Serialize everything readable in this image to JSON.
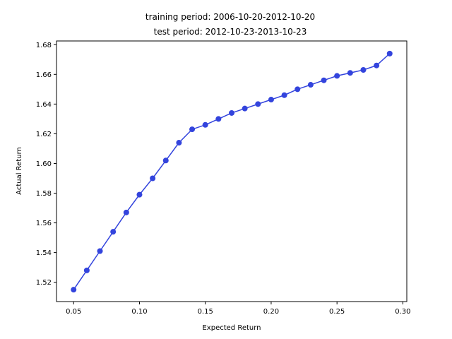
{
  "chart_data": {
    "type": "line",
    "title_lines": [
      "training period: 2006-10-20-2012-10-20",
      "test period: 2012-10-23-2013-10-23"
    ],
    "xlabel": "Expected Return",
    "ylabel": "Actual Return",
    "xlim": [
      0.037,
      0.303
    ],
    "ylim": [
      1.507,
      1.6825
    ],
    "x_ticks": [
      0.05,
      0.1,
      0.15,
      0.2,
      0.25,
      0.3
    ],
    "x_tick_labels": [
      "0.05",
      "0.10",
      "0.15",
      "0.20",
      "0.25",
      "0.30"
    ],
    "y_ticks": [
      1.52,
      1.54,
      1.56,
      1.58,
      1.6,
      1.62,
      1.64,
      1.66,
      1.68
    ],
    "y_tick_labels": [
      "1.52",
      "1.54",
      "1.56",
      "1.58",
      "1.60",
      "1.62",
      "1.64",
      "1.66",
      "1.68"
    ],
    "grid": false,
    "series": [
      {
        "color": "#3344dd",
        "marker": "circle",
        "x": [
          0.05,
          0.06,
          0.07,
          0.08,
          0.09,
          0.1,
          0.11,
          0.12,
          0.13,
          0.14,
          0.15,
          0.16,
          0.17,
          0.18,
          0.19,
          0.2,
          0.21,
          0.22,
          0.23,
          0.24,
          0.25,
          0.26,
          0.27,
          0.28,
          0.29
        ],
        "y": [
          1.515,
          1.528,
          1.541,
          1.554,
          1.567,
          1.579,
          1.59,
          1.602,
          1.614,
          1.623,
          1.626,
          1.63,
          1.634,
          1.637,
          1.64,
          1.643,
          1.646,
          1.65,
          1.653,
          1.656,
          1.659,
          1.661,
          1.663,
          1.666,
          1.674
        ]
      }
    ]
  }
}
